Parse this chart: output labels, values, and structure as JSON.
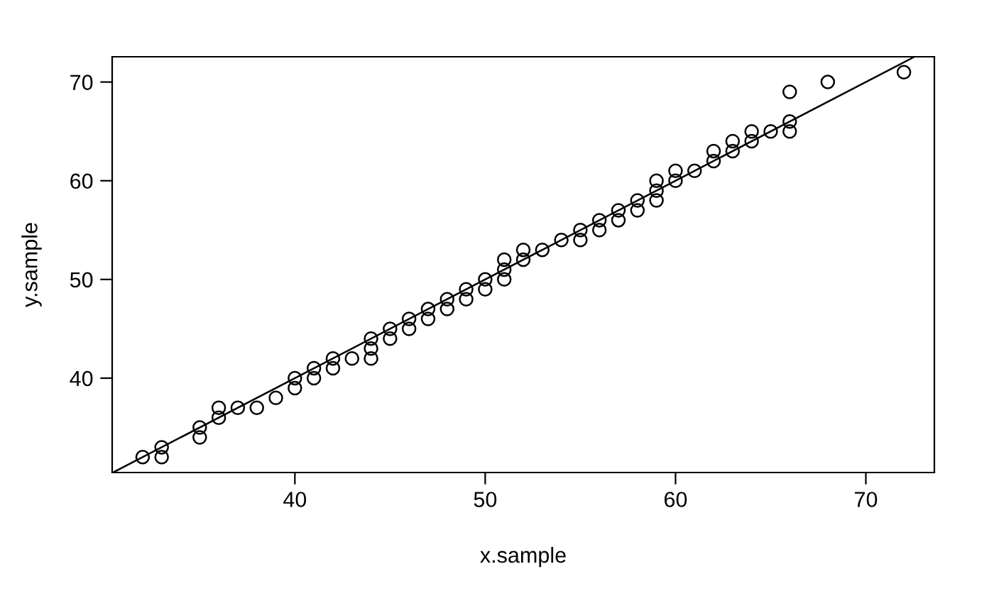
{
  "chart_data": {
    "type": "scatter",
    "xlabel": "x.sample",
    "ylabel": "y.sample",
    "xlim": [
      30.4,
      73.6
    ],
    "ylim": [
      30.44,
      72.56
    ],
    "xticks": [
      40,
      50,
      60,
      70
    ],
    "yticks": [
      40,
      50,
      60,
      70
    ],
    "grid": false,
    "legend": false,
    "series": [
      {
        "marker": "circle",
        "color": "#000000",
        "x": [
          32,
          33,
          33,
          35,
          35,
          36,
          36,
          37,
          38,
          39,
          40,
          40,
          41,
          41,
          42,
          42,
          43,
          44,
          44,
          44,
          45,
          45,
          46,
          46,
          47,
          47,
          48,
          48,
          49,
          49,
          50,
          50,
          51,
          51,
          51,
          52,
          52,
          53,
          54,
          55,
          55,
          56,
          56,
          57,
          57,
          58,
          58,
          59,
          59,
          59,
          60,
          60,
          61,
          62,
          62,
          63,
          63,
          64,
          64,
          65,
          66,
          66,
          66,
          68,
          72
        ],
        "values": [
          32,
          33,
          32,
          35,
          34,
          37,
          36,
          37,
          37,
          38,
          40,
          39,
          41,
          40,
          42,
          41,
          42,
          44,
          43,
          42,
          45,
          44,
          46,
          45,
          47,
          46,
          48,
          47,
          49,
          48,
          50,
          49,
          52,
          51,
          50,
          53,
          52,
          53,
          54,
          55,
          54,
          56,
          55,
          57,
          56,
          58,
          57,
          60,
          59,
          58,
          61,
          60,
          61,
          63,
          62,
          64,
          63,
          65,
          64,
          65,
          69,
          66,
          65,
          70,
          71
        ]
      },
      {
        "type": "line",
        "color": "#000000",
        "line_style": "solid",
        "x": [
          30.5,
          72.5
        ],
        "values": [
          30.5,
          72.5
        ]
      }
    ]
  }
}
